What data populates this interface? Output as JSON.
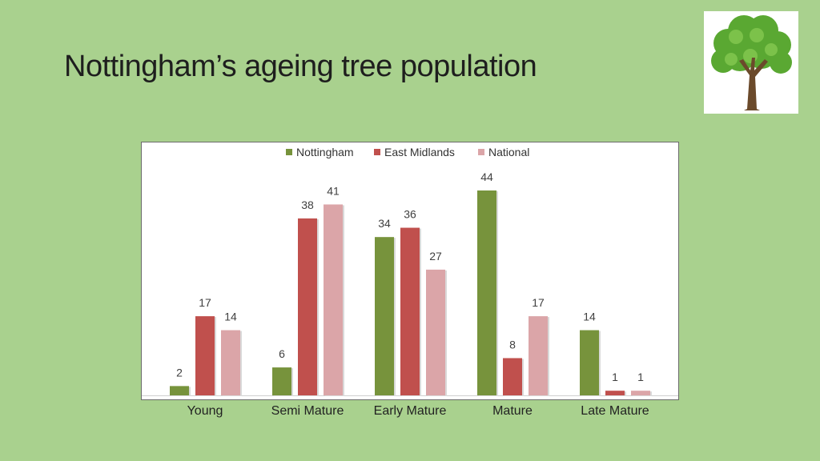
{
  "slide": {
    "title": "Nottingham’s ageing tree population"
  },
  "logo": {
    "icon": "tree-icon"
  },
  "chart_data": {
    "type": "bar",
    "categories": [
      "Young",
      "Semi Mature",
      "Early Mature",
      "Mature",
      "Late Mature"
    ],
    "series": [
      {
        "name": "Nottingham",
        "color": "#77933c",
        "values": [
          2,
          6,
          34,
          44,
          14
        ]
      },
      {
        "name": "East Midlands",
        "color": "#c0504d",
        "values": [
          17,
          38,
          36,
          8,
          1
        ]
      },
      {
        "name": "National",
        "color": "#dba5a8",
        "values": [
          14,
          41,
          27,
          17,
          1
        ]
      }
    ],
    "ylim": [
      0,
      44
    ],
    "grid": false,
    "legend": "top-center",
    "data_labels": true
  }
}
